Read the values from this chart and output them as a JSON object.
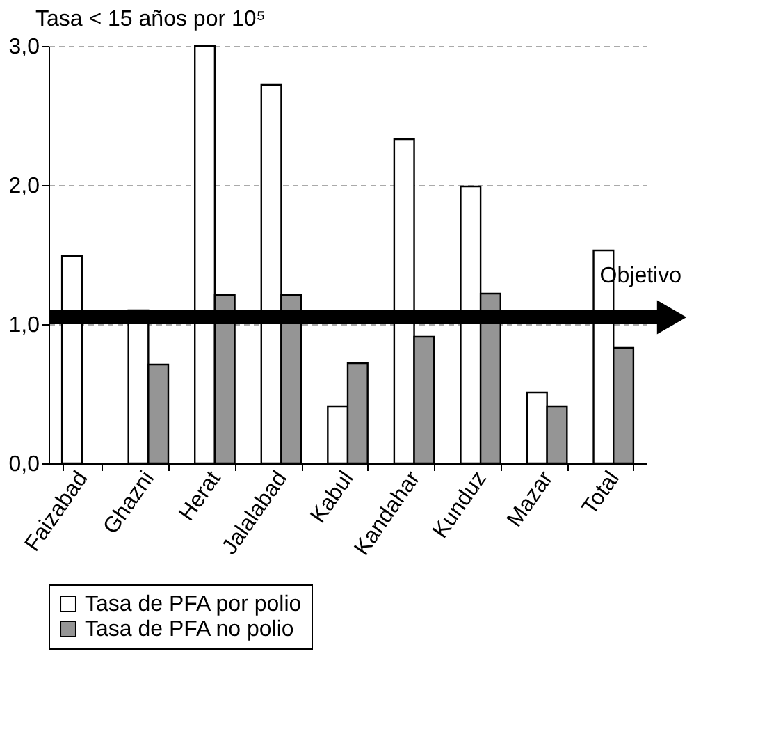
{
  "chart_data": {
    "type": "bar",
    "ylabel": "Tasa < 15 años por 10⁵",
    "categories": [
      "Faizabad",
      "Ghazni",
      "Herat",
      "Jalalabad",
      "Kabul",
      "Kandahar",
      "Kunduz",
      "Mazar",
      "Total"
    ],
    "series": [
      {
        "name": "Tasa de PFA por polio",
        "color": "#ffffff",
        "values": [
          1.49,
          1.1,
          3.0,
          2.72,
          0.41,
          2.33,
          1.99,
          0.51,
          1.53
        ]
      },
      {
        "name": "Tasa de PFA no polio",
        "color": "#959595",
        "values": [
          null,
          0.71,
          1.21,
          1.21,
          0.72,
          0.91,
          1.22,
          0.41,
          0.83
        ]
      }
    ],
    "ylim": [
      0,
      3
    ],
    "yticks": [
      {
        "value": 0,
        "label": "0,0"
      },
      {
        "value": 1,
        "label": "1,0"
      },
      {
        "value": 2,
        "label": "2,0"
      },
      {
        "value": 3,
        "label": "3,0"
      }
    ],
    "ref_lines": [
      {
        "axis": "y",
        "value": 1.05,
        "label": "Objetivo",
        "color": "#000000"
      }
    ],
    "grid": "y",
    "legend": "bottom"
  }
}
